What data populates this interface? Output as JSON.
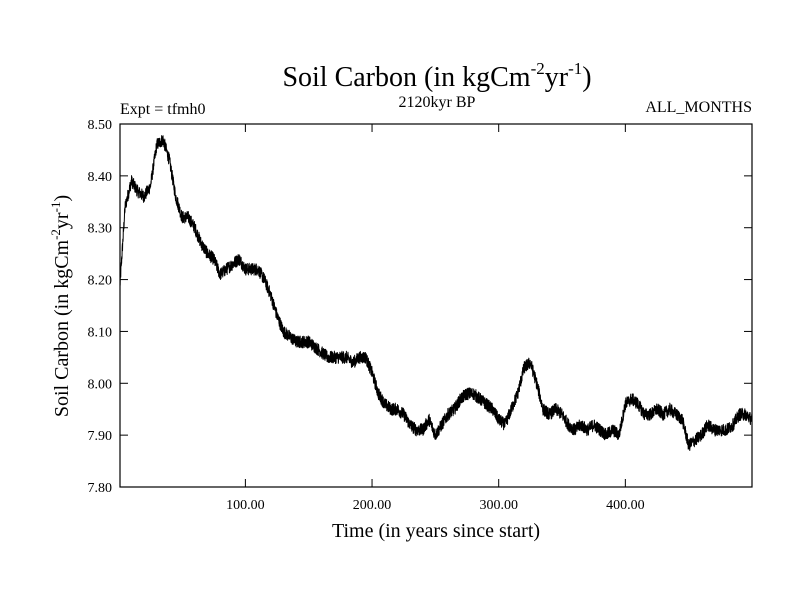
{
  "chart_data": {
    "type": "line",
    "title": "Soil Carbon (in kgCm",
    "title_sup1": "-2",
    "title_mid": "yr",
    "title_sup2": "-1",
    "title_end": ")",
    "subtitle_left": "Expt = tfmh0",
    "subtitle_center": "2120kyr BP",
    "subtitle_right": "ALL_MONTHS",
    "xlabel": "Time (in years since start)",
    "ylabel": "Soil Carbon (in kgCm",
    "ylabel_sup1": "-2",
    "ylabel_mid": "yr",
    "ylabel_sup2": "-1",
    "ylabel_end": ")",
    "xlim": [
      1,
      500
    ],
    "ylim": [
      7.8,
      8.5
    ],
    "xticks": [
      100,
      200,
      300,
      400
    ],
    "xtick_labels": [
      "100.00",
      "200.00",
      "300.00",
      "400.00"
    ],
    "yticks": [
      7.8,
      7.9,
      8.0,
      8.1,
      8.2,
      8.3,
      8.4,
      8.5
    ],
    "ytick_labels": [
      "7.80",
      "7.90",
      "8.00",
      "8.10",
      "8.20",
      "8.30",
      "8.40",
      "8.50"
    ],
    "noise_amplitude": 0.012,
    "series": [
      {
        "name": "Soil Carbon",
        "color": "#000000",
        "x": [
          1,
          5,
          10,
          15,
          20,
          25,
          30,
          35,
          40,
          45,
          50,
          55,
          60,
          65,
          70,
          75,
          80,
          85,
          90,
          95,
          100,
          105,
          110,
          115,
          120,
          125,
          130,
          135,
          140,
          145,
          150,
          155,
          160,
          165,
          170,
          175,
          180,
          185,
          190,
          195,
          200,
          205,
          210,
          215,
          220,
          225,
          230,
          235,
          240,
          245,
          250,
          255,
          260,
          265,
          270,
          275,
          280,
          285,
          290,
          295,
          300,
          305,
          310,
          315,
          320,
          325,
          330,
          335,
          340,
          345,
          350,
          355,
          360,
          365,
          370,
          375,
          380,
          385,
          390,
          395,
          400,
          405,
          410,
          415,
          420,
          425,
          430,
          435,
          440,
          445,
          450,
          455,
          460,
          465,
          470,
          475,
          480,
          485,
          490,
          495,
          500
        ],
        "y": [
          8.19,
          8.34,
          8.39,
          8.37,
          8.36,
          8.38,
          8.46,
          8.47,
          8.43,
          8.36,
          8.32,
          8.32,
          8.3,
          8.27,
          8.25,
          8.24,
          8.21,
          8.22,
          8.23,
          8.24,
          8.22,
          8.22,
          8.22,
          8.2,
          8.17,
          8.13,
          8.1,
          8.09,
          8.08,
          8.08,
          8.08,
          8.07,
          8.06,
          8.05,
          8.05,
          8.05,
          8.05,
          8.04,
          8.05,
          8.05,
          8.02,
          7.98,
          7.96,
          7.95,
          7.95,
          7.94,
          7.92,
          7.91,
          7.91,
          7.93,
          7.9,
          7.92,
          7.94,
          7.95,
          7.97,
          7.98,
          7.98,
          7.97,
          7.96,
          7.95,
          7.93,
          7.92,
          7.95,
          7.98,
          8.03,
          8.04,
          8.0,
          7.95,
          7.94,
          7.95,
          7.94,
          7.92,
          7.91,
          7.92,
          7.91,
          7.92,
          7.91,
          7.9,
          7.91,
          7.9,
          7.96,
          7.97,
          7.96,
          7.94,
          7.94,
          7.95,
          7.94,
          7.95,
          7.94,
          7.93,
          7.88,
          7.89,
          7.9,
          7.92,
          7.91,
          7.91,
          7.91,
          7.92,
          7.94,
          7.94,
          7.93
        ]
      }
    ]
  }
}
